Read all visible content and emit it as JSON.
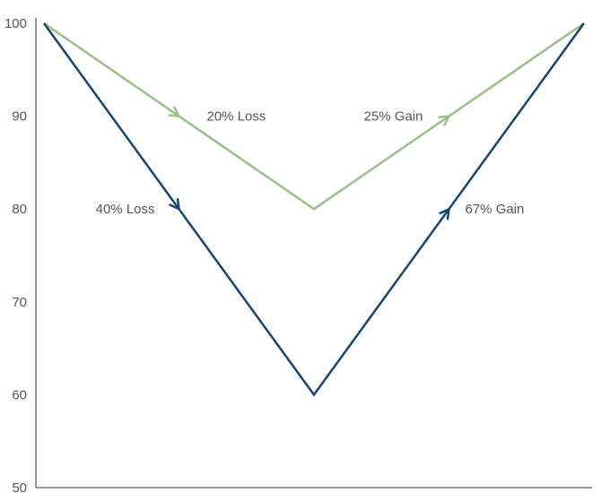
{
  "chart_data": {
    "type": "line",
    "title": "",
    "xlabel": "",
    "ylabel": "",
    "ylim": [
      50,
      100
    ],
    "yticks": [
      50,
      60,
      70,
      80,
      90,
      100
    ],
    "x": [
      0,
      1,
      2
    ],
    "grid": false,
    "series": [
      {
        "values": [
          100,
          80,
          100
        ],
        "color": "#9bbf8c"
      },
      {
        "values": [
          100,
          60,
          100
        ],
        "color": "#16466d"
      }
    ],
    "annotations": [
      {
        "text": "20% Loss",
        "series": 0,
        "segment": 0,
        "x": 0.5,
        "y": 90
      },
      {
        "text": "25% Gain",
        "series": 0,
        "segment": 1,
        "x": 1.5,
        "y": 90
      },
      {
        "text": "40% Loss",
        "series": 1,
        "segment": 0,
        "x": 0.5,
        "y": 80
      },
      {
        "text": "67% Gain",
        "series": 1,
        "segment": 1,
        "x": 1.5,
        "y": 80
      }
    ]
  }
}
